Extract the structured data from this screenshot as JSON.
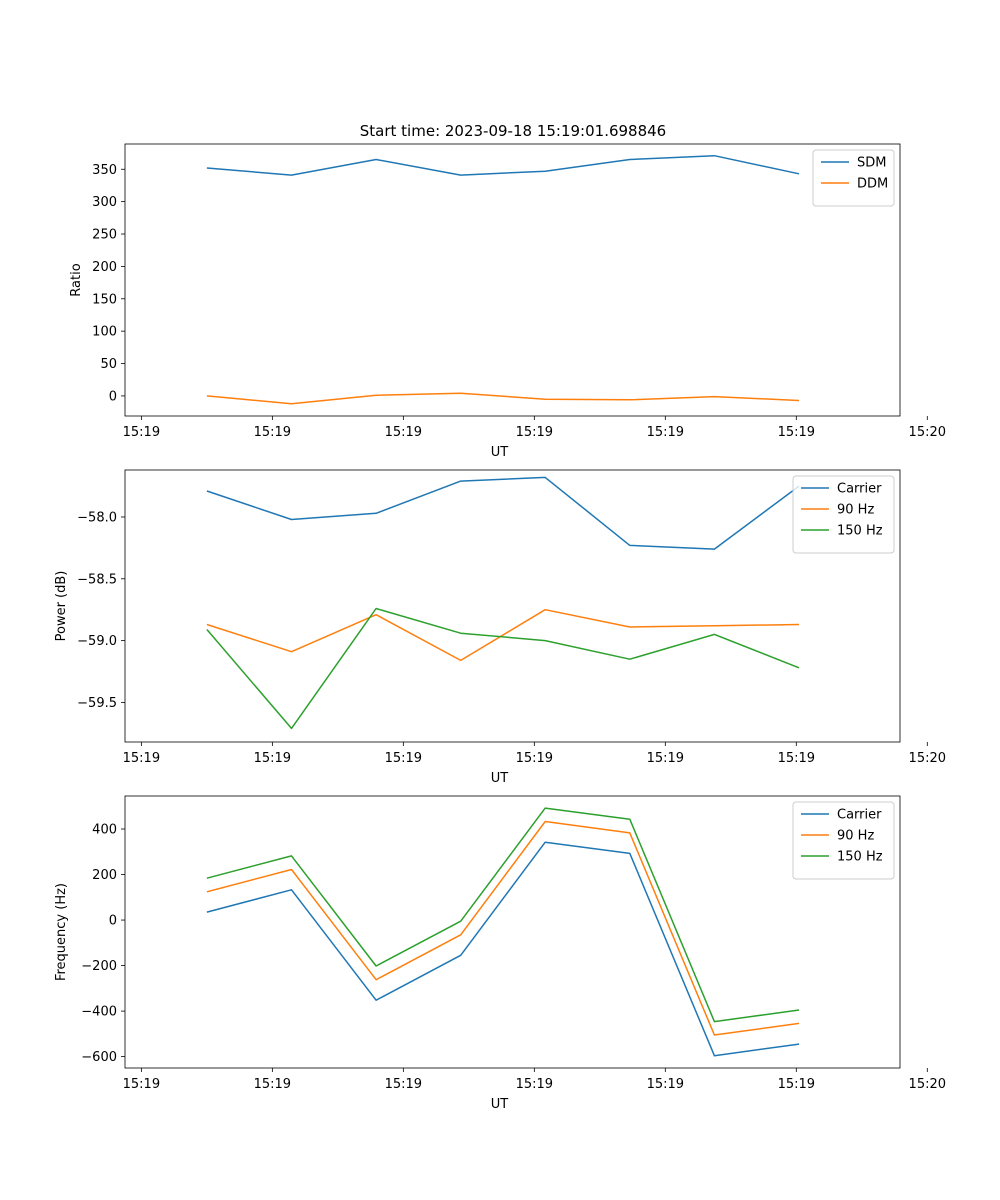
{
  "title": "Start time: 2023-09-18 15:19:01.698846",
  "chart_data": [
    {
      "type": "line",
      "ylabel": "Ratio",
      "xlabel": "UT",
      "ylim": [
        -31,
        389
      ],
      "yticks": [
        0,
        50,
        100,
        150,
        200,
        250,
        300,
        350
      ],
      "ytick_labels": [
        "0",
        "50",
        "100",
        "150",
        "200",
        "250",
        "300",
        "350"
      ],
      "xlim": [
        -1,
        27.4
      ],
      "xticks": [
        -0.4,
        4.4,
        9.2,
        14.0,
        18.8,
        23.6,
        28.4
      ],
      "xtick_labels": [
        "15:19",
        "15:19",
        "15:19",
        "15:19",
        "15:19",
        "15:19",
        "15:20"
      ],
      "x": [
        2,
        5.1,
        8.2,
        11.3,
        14.4,
        17.5,
        20.6,
        23.7
      ],
      "series": [
        {
          "name": "SDM",
          "color": "#1f77b4",
          "values": [
            352,
            341,
            365,
            341,
            347,
            365,
            371,
            343
          ]
        },
        {
          "name": "DDM",
          "color": "#ff7f0e",
          "values": [
            0,
            -12,
            1,
            4,
            -5,
            -6,
            -1,
            -7
          ]
        }
      ]
    },
    {
      "type": "line",
      "ylabel": "Power (dB)",
      "xlabel": "UT",
      "ylim": [
        -59.82,
        -57.62
      ],
      "yticks": [
        -58.0,
        -58.5,
        -59.0,
        -59.5
      ],
      "ytick_labels": [
        "−58.0",
        "−58.5",
        "−59.0",
        "−59.5"
      ],
      "xlim": [
        -1,
        27.4
      ],
      "xticks": [
        -0.4,
        4.4,
        9.2,
        14.0,
        18.8,
        23.6,
        28.4
      ],
      "xtick_labels": [
        "15:19",
        "15:19",
        "15:19",
        "15:19",
        "15:19",
        "15:19",
        "15:20"
      ],
      "x": [
        2,
        5.1,
        8.2,
        11.3,
        14.4,
        17.5,
        20.6,
        23.7
      ],
      "series": [
        {
          "name": "Carrier",
          "color": "#1f77b4",
          "values": [
            -57.79,
            -58.02,
            -57.97,
            -57.71,
            -57.68,
            -58.23,
            -58.26,
            -57.75
          ]
        },
        {
          "name": "90 Hz",
          "color": "#ff7f0e",
          "values": [
            -58.87,
            -59.09,
            -58.79,
            -59.16,
            -58.75,
            -58.89,
            -58.88,
            -58.87
          ]
        },
        {
          "name": "150 Hz",
          "color": "#2ca02c",
          "values": [
            -58.91,
            -59.71,
            -58.74,
            -58.94,
            -59.0,
            -59.15,
            -58.95,
            -59.22
          ]
        }
      ]
    },
    {
      "type": "line",
      "ylabel": "Frequency (Hz)",
      "xlabel": "UT",
      "ylim": [
        -650,
        545
      ],
      "yticks": [
        400,
        200,
        0,
        -200,
        -400,
        -600
      ],
      "ytick_labels": [
        "400",
        "200",
        "0",
        "−200",
        "−400",
        "−600"
      ],
      "xlim": [
        -1,
        27.4
      ],
      "xticks": [
        -0.4,
        4.4,
        9.2,
        14.0,
        18.8,
        23.6,
        28.4
      ],
      "xtick_labels": [
        "15:19",
        "15:19",
        "15:19",
        "15:19",
        "15:19",
        "15:19",
        "15:20"
      ],
      "x": [
        2,
        5.1,
        8.2,
        11.3,
        14.4,
        17.5,
        20.6,
        23.7
      ],
      "series": [
        {
          "name": "Carrier",
          "color": "#1f77b4",
          "values": [
            35,
            133,
            -352,
            -155,
            342,
            293,
            -596,
            -545
          ]
        },
        {
          "name": "90 Hz",
          "color": "#ff7f0e",
          "values": [
            124,
            222,
            -262,
            -65,
            433,
            383,
            -505,
            -454
          ]
        },
        {
          "name": "150 Hz",
          "color": "#2ca02c",
          "values": [
            184,
            282,
            -202,
            -5,
            492,
            443,
            -446,
            -395
          ]
        }
      ]
    }
  ]
}
